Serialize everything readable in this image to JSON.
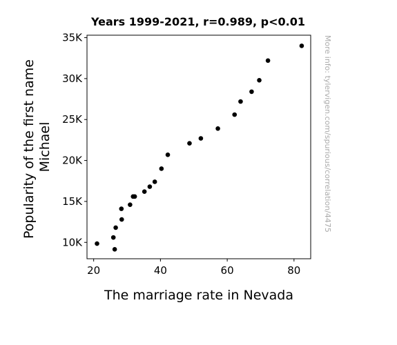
{
  "chart_data": {
    "type": "scatter",
    "title": "Years 1999-2021, r=0.989, p<0.01",
    "xlabel": "The marriage rate in Nevada",
    "ylabel_lines": [
      "Popularity of the first name",
      "Michael"
    ],
    "xlim": [
      18,
      85
    ],
    "ylim": [
      8000,
      35300
    ],
    "xticks": [
      20,
      40,
      60,
      80
    ],
    "xtick_labels": [
      "20",
      "40",
      "60",
      "80"
    ],
    "yticks": [
      10000,
      15000,
      20000,
      25000,
      30000,
      35000
    ],
    "ytick_labels": [
      "10K",
      "15K",
      "20K",
      "25K",
      "30K",
      "35K"
    ],
    "grid": false,
    "marker_color": "#000000",
    "points": [
      {
        "x": 82.3,
        "y": 34000
      },
      {
        "x": 72.2,
        "y": 32200
      },
      {
        "x": 69.6,
        "y": 29800
      },
      {
        "x": 67.3,
        "y": 28400
      },
      {
        "x": 64.0,
        "y": 27200
      },
      {
        "x": 62.2,
        "y": 25600
      },
      {
        "x": 57.2,
        "y": 23900
      },
      {
        "x": 52.1,
        "y": 22700
      },
      {
        "x": 48.7,
        "y": 22100
      },
      {
        "x": 42.2,
        "y": 20700
      },
      {
        "x": 40.3,
        "y": 19000
      },
      {
        "x": 38.3,
        "y": 17400
      },
      {
        "x": 36.8,
        "y": 16800
      },
      {
        "x": 35.2,
        "y": 16200
      },
      {
        "x": 32.3,
        "y": 15600
      },
      {
        "x": 31.8,
        "y": 15600
      },
      {
        "x": 30.9,
        "y": 14600
      },
      {
        "x": 28.3,
        "y": 14100
      },
      {
        "x": 28.4,
        "y": 12800
      },
      {
        "x": 26.6,
        "y": 11800
      },
      {
        "x": 25.9,
        "y": 10600
      },
      {
        "x": 21.0,
        "y": 9850
      },
      {
        "x": 26.3,
        "y": 9150
      }
    ]
  },
  "watermark": "More info: tylervigen.com/spurious/correlation/4475"
}
